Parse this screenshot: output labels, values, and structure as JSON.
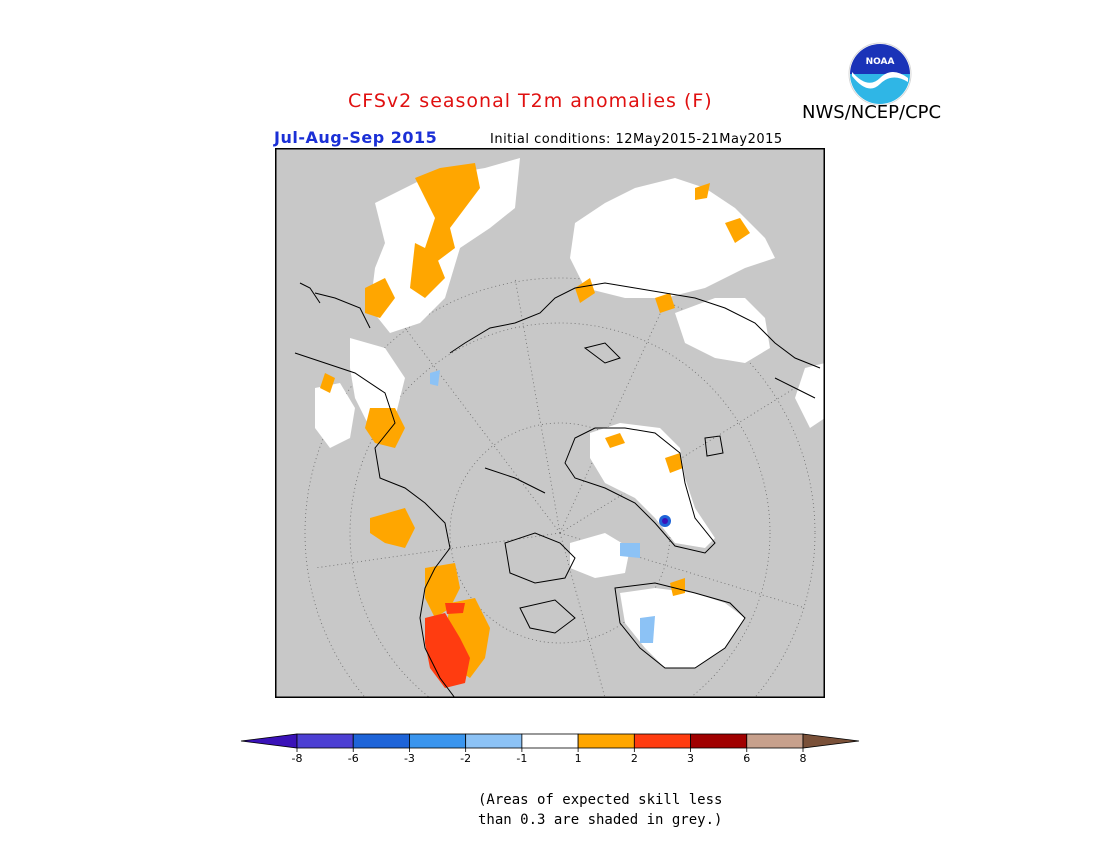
{
  "header": {
    "title": "CFSv2 seasonal T2m anomalies (F)",
    "agency": "NWS/NCEP/CPC",
    "logo_text": "NOAA",
    "season": "Jul-Aug-Sep 2015",
    "initial_conditions": "Initial conditions: 12May2015-21May2015"
  },
  "legend": {
    "bins": [
      {
        "color": "#3a12b8"
      },
      {
        "color": "#4c3fd3"
      },
      {
        "color": "#1e64d8"
      },
      {
        "color": "#3a95ee"
      },
      {
        "color": "#8cc2f5"
      },
      {
        "color": "#ffffff"
      },
      {
        "color": "#ffa600"
      },
      {
        "color": "#ff3c10"
      },
      {
        "color": "#a00000"
      },
      {
        "color": "#c7a08c"
      },
      {
        "color": "#7a5038"
      }
    ],
    "tick_labels": [
      "-8",
      "-6",
      "-3",
      "-2",
      "-1",
      "1",
      "2",
      "3",
      "6",
      "8"
    ]
  },
  "footnote": {
    "line1": "(Areas of expected skill less",
    "line2": "than 0.3 are shaded in grey.)"
  },
  "map": {
    "projection": "north polar stereographic",
    "background_color": "#c8c8c8"
  }
}
